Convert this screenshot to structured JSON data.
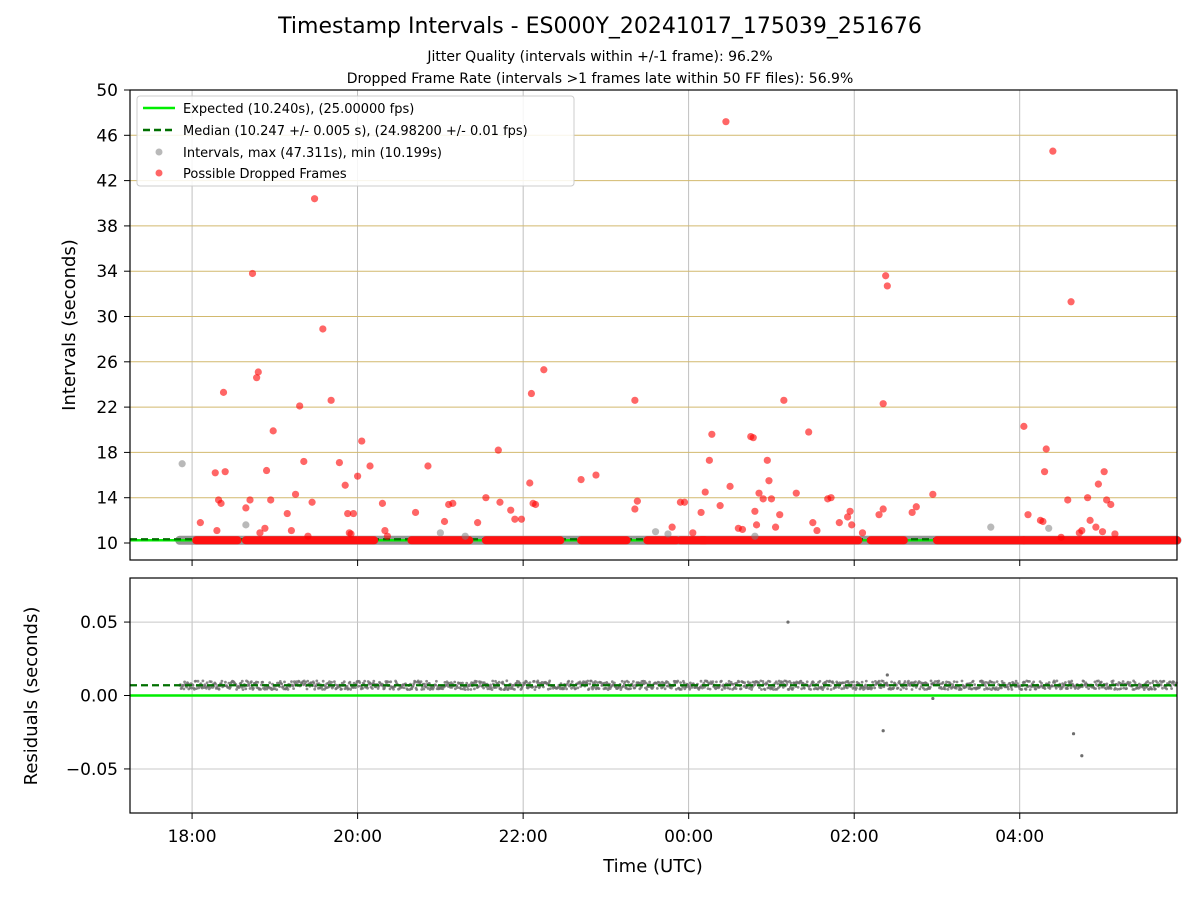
{
  "header": {
    "title": "Timestamp Intervals - ES000Y_20241017_175039_251676",
    "subtitle_1": "Jitter Quality (intervals within +/-1 frame): 96.2%",
    "subtitle_2": "Dropped Frame Rate (intervals >1 frames late within 50 FF files): 56.9%"
  },
  "chart_data": [
    {
      "type": "scatter",
      "name": "intervals",
      "ylabel": "Intervals (seconds)",
      "xlabel": "",
      "x_unit": "hours since 18:00 UTC",
      "xlim": [
        -0.75,
        11.9
      ],
      "ylim": [
        8.5,
        50
      ],
      "x_tick_labels": [
        "18:00",
        "20:00",
        "22:00",
        "00:00",
        "02:00",
        "04:00"
      ],
      "y_ticks": [
        10,
        14,
        18,
        22,
        26,
        30,
        34,
        38,
        42,
        46,
        50
      ],
      "y_tick_labels": [
        "10",
        "14",
        "18",
        "22",
        "26",
        "30",
        "34",
        "38",
        "42",
        "46",
        "50"
      ],
      "grid": true,
      "legend_position": "upper-left",
      "legend": [
        "Expected (10.240s), (25.00000 fps)",
        "Median (10.247 +/- 0.005 s), (24.98200 +/- 0.01 fps)",
        "Intervals, max (47.311s), min (10.199s)",
        "Possible Dropped Frames"
      ],
      "expected_interval": 10.24,
      "median_interval": 10.247,
      "interval_band": {
        "x_start": -0.15,
        "x_end": 11.9,
        "y": 10.24
      },
      "dropped_runs": [
        [
          0.05,
          0.55
        ],
        [
          0.65,
          2.2
        ],
        [
          2.65,
          3.35
        ],
        [
          3.55,
          4.45
        ],
        [
          4.7,
          5.25
        ],
        [
          5.5,
          5.85
        ],
        [
          5.9,
          6.2
        ],
        [
          6.15,
          8.05
        ],
        [
          8.2,
          8.6
        ],
        [
          9.0,
          10.05
        ],
        [
          10.05,
          11.9
        ]
      ],
      "gray_points": [
        [
          -0.12,
          17.0
        ],
        [
          0.65,
          11.6
        ],
        [
          3.0,
          10.9
        ],
        [
          5.6,
          11.0
        ],
        [
          5.75,
          10.8
        ],
        [
          9.65,
          11.4
        ],
        [
          10.35,
          11.3
        ],
        [
          3.3,
          10.6
        ],
        [
          6.8,
          10.6
        ]
      ],
      "red_points": [
        [
          0.1,
          11.8
        ],
        [
          0.28,
          16.2
        ],
        [
          0.3,
          11.1
        ],
        [
          0.32,
          13.8
        ],
        [
          0.35,
          13.5
        ],
        [
          0.38,
          23.3
        ],
        [
          0.4,
          16.3
        ],
        [
          0.65,
          13.1
        ],
        [
          0.7,
          13.8
        ],
        [
          0.73,
          33.8
        ],
        [
          0.78,
          24.6
        ],
        [
          0.8,
          25.1
        ],
        [
          0.82,
          10.9
        ],
        [
          0.88,
          11.3
        ],
        [
          0.9,
          16.4
        ],
        [
          0.95,
          13.8
        ],
        [
          0.98,
          19.9
        ],
        [
          1.15,
          12.6
        ],
        [
          1.2,
          11.1
        ],
        [
          1.25,
          14.3
        ],
        [
          1.3,
          22.1
        ],
        [
          1.35,
          17.2
        ],
        [
          1.4,
          10.6
        ],
        [
          1.45,
          13.6
        ],
        [
          1.48,
          40.4
        ],
        [
          1.58,
          28.9
        ],
        [
          1.68,
          22.6
        ],
        [
          1.78,
          17.1
        ],
        [
          1.85,
          15.1
        ],
        [
          1.88,
          12.6
        ],
        [
          1.9,
          10.9
        ],
        [
          1.92,
          10.8
        ],
        [
          1.95,
          12.6
        ],
        [
          2.0,
          15.9
        ],
        [
          2.05,
          19.0
        ],
        [
          2.15,
          16.8
        ],
        [
          2.3,
          13.5
        ],
        [
          2.33,
          11.1
        ],
        [
          2.36,
          10.6
        ],
        [
          2.7,
          12.7
        ],
        [
          2.85,
          16.8
        ],
        [
          3.05,
          11.9
        ],
        [
          3.1,
          13.4
        ],
        [
          3.15,
          13.5
        ],
        [
          3.45,
          11.8
        ],
        [
          3.55,
          14.0
        ],
        [
          3.7,
          18.2
        ],
        [
          3.72,
          13.6
        ],
        [
          3.85,
          12.9
        ],
        [
          3.9,
          12.1
        ],
        [
          3.98,
          12.1
        ],
        [
          4.08,
          15.3
        ],
        [
          4.1,
          23.2
        ],
        [
          4.12,
          13.5
        ],
        [
          4.15,
          13.4
        ],
        [
          4.25,
          25.3
        ],
        [
          4.7,
          15.6
        ],
        [
          4.88,
          16.0
        ],
        [
          5.35,
          22.6
        ],
        [
          5.35,
          13.0
        ],
        [
          5.38,
          13.7
        ],
        [
          5.8,
          11.4
        ],
        [
          5.9,
          13.6
        ],
        [
          5.95,
          13.6
        ],
        [
          6.05,
          10.9
        ],
        [
          6.15,
          12.7
        ],
        [
          6.2,
          14.5
        ],
        [
          6.25,
          17.3
        ],
        [
          6.28,
          19.6
        ],
        [
          6.38,
          13.3
        ],
        [
          6.45,
          47.2
        ],
        [
          6.5,
          15.0
        ],
        [
          6.6,
          11.3
        ],
        [
          6.65,
          11.2
        ],
        [
          6.75,
          19.4
        ],
        [
          6.78,
          19.3
        ],
        [
          6.8,
          12.8
        ],
        [
          6.82,
          11.6
        ],
        [
          6.85,
          14.4
        ],
        [
          6.9,
          13.9
        ],
        [
          6.95,
          17.3
        ],
        [
          6.97,
          15.5
        ],
        [
          7.0,
          13.9
        ],
        [
          7.05,
          11.4
        ],
        [
          7.1,
          12.5
        ],
        [
          7.15,
          22.6
        ],
        [
          7.3,
          14.4
        ],
        [
          7.45,
          19.8
        ],
        [
          7.5,
          11.8
        ],
        [
          7.55,
          11.1
        ],
        [
          7.68,
          13.9
        ],
        [
          7.72,
          14.0
        ],
        [
          7.82,
          11.8
        ],
        [
          7.92,
          12.3
        ],
        [
          7.95,
          12.8
        ],
        [
          7.97,
          11.6
        ],
        [
          8.1,
          10.9
        ],
        [
          8.3,
          12.5
        ],
        [
          8.35,
          13.0
        ],
        [
          8.35,
          22.3
        ],
        [
          8.38,
          33.6
        ],
        [
          8.4,
          32.7
        ],
        [
          8.7,
          12.7
        ],
        [
          8.75,
          13.2
        ],
        [
          8.95,
          14.3
        ],
        [
          10.05,
          20.3
        ],
        [
          10.1,
          12.5
        ],
        [
          10.25,
          12.0
        ],
        [
          10.28,
          11.9
        ],
        [
          10.3,
          16.3
        ],
        [
          10.32,
          18.3
        ],
        [
          10.4,
          44.6
        ],
        [
          10.5,
          10.5
        ],
        [
          10.58,
          13.8
        ],
        [
          10.62,
          31.3
        ],
        [
          10.72,
          10.9
        ],
        [
          10.75,
          11.1
        ],
        [
          10.82,
          14.0
        ],
        [
          10.85,
          12.0
        ],
        [
          10.92,
          11.4
        ],
        [
          10.95,
          15.2
        ],
        [
          11.0,
          11.0
        ],
        [
          11.02,
          16.3
        ],
        [
          11.05,
          13.8
        ],
        [
          11.1,
          13.4
        ],
        [
          11.15,
          10.8
        ]
      ]
    },
    {
      "type": "scatter",
      "name": "residuals",
      "ylabel": "Residuals (seconds)",
      "xlabel": "Time (UTC)",
      "xlim": [
        -0.75,
        11.9
      ],
      "ylim": [
        -0.08,
        0.08
      ],
      "x_tick_labels": [
        "18:00",
        "20:00",
        "22:00",
        "00:00",
        "02:00",
        "04:00"
      ],
      "y_ticks": [
        0.05,
        0.0,
        -0.05
      ],
      "y_tick_labels": [
        "0.05",
        "0.00",
        "−0.05"
      ],
      "grid": true,
      "expected_residual": 0.0,
      "median_residual": 0.007,
      "band": {
        "x_start": -0.15,
        "x_end": 11.9,
        "center": 0.007,
        "spread": 0.003
      },
      "outliers": [
        [
          7.2,
          0.05
        ],
        [
          8.35,
          -0.024
        ],
        [
          10.65,
          -0.026
        ],
        [
          10.75,
          -0.041
        ],
        [
          8.95,
          -0.002
        ],
        [
          8.4,
          0.014
        ]
      ]
    }
  ]
}
